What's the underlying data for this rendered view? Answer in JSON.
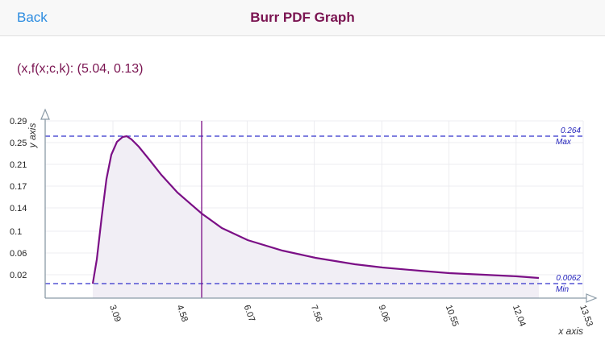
{
  "navbar": {
    "back_label": "Back",
    "title": "Burr PDF Graph"
  },
  "readout": {
    "text": "(x,f(x;c,k): (5.04, 0.13)"
  },
  "colors": {
    "curve": "#7b0f86",
    "fill": "#f1eef5",
    "reference_line": "#3333cc",
    "cursor": "#7b0f86",
    "axis": "#8a9aa6",
    "grid": "#ececf0",
    "title": "#7a1451",
    "back": "#2b8be0"
  },
  "chart_data": {
    "type": "area",
    "title": "Burr PDF Graph",
    "xlabel": "x axis",
    "ylabel": "y axis",
    "x_ticks": [
      "3.09",
      "4.58",
      "6.07",
      "7.56",
      "9.06",
      "10.55",
      "12.04",
      "13.53"
    ],
    "y_ticks": [
      "0.02",
      "0.06",
      "0.1",
      "0.14",
      "0.17",
      "0.21",
      "0.25",
      "0.29"
    ],
    "xlim": [
      1.6,
      13.53
    ],
    "ylim": [
      0.0,
      0.29
    ],
    "grid": true,
    "series": [
      {
        "name": "f(x;c,k)",
        "x": [
          2.35,
          2.45,
          2.6,
          2.8,
          3.0,
          3.2,
          3.4,
          3.7,
          4.0,
          4.5,
          5.04,
          5.5,
          6.07,
          7.0,
          7.56,
          8.5,
          9.06,
          10.0,
          10.55,
          11.5,
          12.04,
          12.6
        ],
        "y": [
          0.0062,
          0.05,
          0.13,
          0.22,
          0.255,
          0.264,
          0.258,
          0.24,
          0.215,
          0.175,
          0.13,
          0.11,
          0.09,
          0.068,
          0.058,
          0.046,
          0.04,
          0.033,
          0.03,
          0.025,
          0.022,
          0.02
        ]
      }
    ],
    "reference_lines": [
      {
        "label": "Max",
        "value": "0.264",
        "y": 0.264
      },
      {
        "label": "Min",
        "value": "0.0062",
        "y": 0.0062
      }
    ],
    "cursor": {
      "x": 5.04,
      "y": 0.13
    }
  }
}
